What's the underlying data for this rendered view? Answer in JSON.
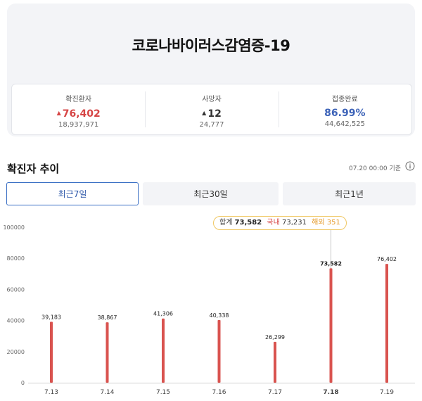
{
  "summary": {
    "title": "코로나바이러스감염증-19",
    "stats": [
      {
        "label": "확진환자",
        "value": "76,402",
        "sub": "18,937,971",
        "trend": "up",
        "color": "#d64545"
      },
      {
        "label": "사망자",
        "value": "12",
        "sub": "24,777",
        "trend": "up",
        "color": "#333333"
      },
      {
        "label": "접종완료",
        "value": "86.99%",
        "sub": "44,642,525",
        "trend": "none",
        "color": "#3d63b8"
      }
    ]
  },
  "section": {
    "title": "확진자 추이",
    "base_time": "07.20 00:00 기준",
    "info_icon": "info-icon"
  },
  "tabs": [
    {
      "label": "최근7일",
      "active": true
    },
    {
      "label": "최근30일",
      "active": false
    },
    {
      "label": "최근1년",
      "active": false
    }
  ],
  "tooltip": {
    "total_label": "합계",
    "total": "73,582",
    "domestic_label": "국내",
    "domestic": "73,231",
    "overseas_label": "해외",
    "overseas": "351"
  },
  "chart_data": {
    "type": "bar",
    "categories": [
      "7.13",
      "7.14",
      "7.15",
      "7.16",
      "7.17",
      "7.18",
      "7.19"
    ],
    "values": [
      39183,
      38867,
      41306,
      40338,
      26299,
      73582,
      76402
    ],
    "value_labels": [
      "39,183",
      "38,867",
      "41,306",
      "40,338",
      "26,299",
      "73,582",
      "76,402"
    ],
    "y_ticks": [
      "0",
      "20000",
      "40000",
      "60000",
      "80000",
      "100000"
    ],
    "ylim": [
      0,
      100000
    ],
    "selected_index": 5,
    "bar_color": "#d9534f",
    "grid": false
  }
}
